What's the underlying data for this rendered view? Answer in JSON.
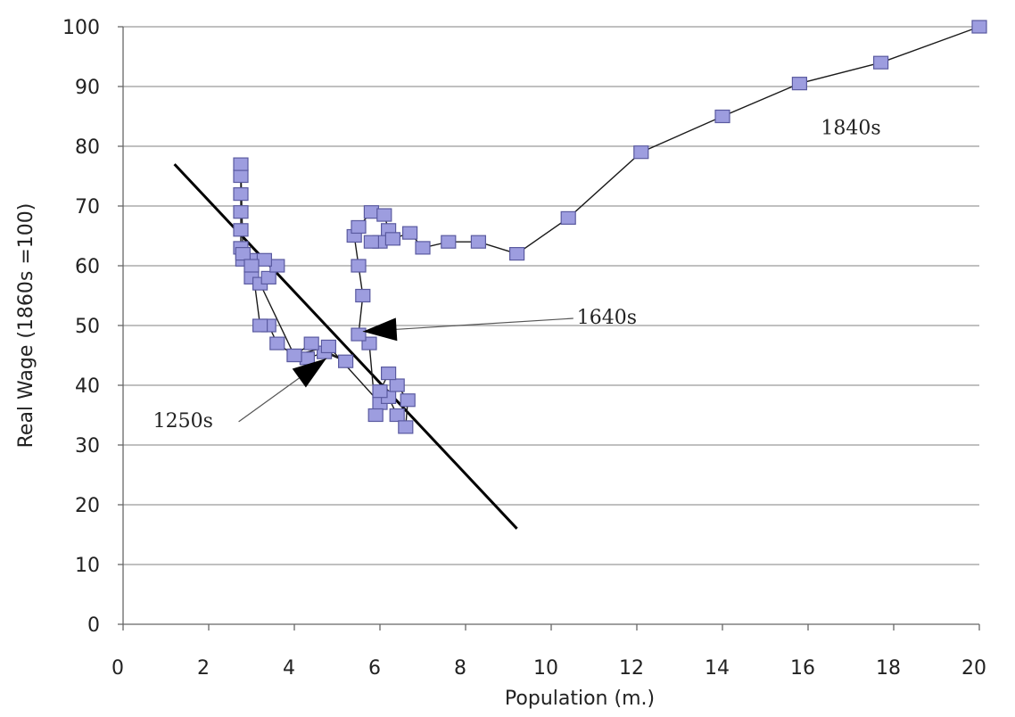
{
  "chart_data": {
    "type": "scatter",
    "title": "",
    "xlabel": "Population (m.)",
    "ylabel": "Real Wage (1860s =100)",
    "xlim": [
      0,
      20
    ],
    "ylim": [
      0,
      100
    ],
    "xticks": [
      0,
      2,
      4,
      6,
      8,
      10,
      12,
      14,
      16,
      18,
      20
    ],
    "yticks": [
      0,
      10,
      20,
      30,
      40,
      50,
      60,
      70,
      80,
      90,
      100
    ],
    "grid": "horizontal",
    "marker": "square",
    "marker_color": "#9d9ddf",
    "line_color": "#1a1a1a",
    "series": [
      {
        "points": [
          [
            4.3,
            44.5
          ],
          [
            4.7,
            45.5
          ],
          [
            5.2,
            44.0
          ],
          [
            4.4,
            47.0
          ],
          [
            4.0,
            45.0
          ],
          [
            3.6,
            47.0
          ],
          [
            3.4,
            50.0
          ],
          [
            3.2,
            50.0
          ],
          [
            3.0,
            61.0
          ],
          [
            2.8,
            61.0
          ],
          [
            2.75,
            63.0
          ],
          [
            2.75,
            66.0
          ],
          [
            2.75,
            69.0
          ],
          [
            2.75,
            72.0
          ],
          [
            2.75,
            75.0
          ],
          [
            2.75,
            77.0
          ],
          [
            2.8,
            62.0
          ],
          [
            3.0,
            58.0
          ],
          [
            3.2,
            57.0
          ],
          [
            3.4,
            58.0
          ],
          [
            3.6,
            60.0
          ],
          [
            3.3,
            61.0
          ],
          [
            3.0,
            60.0
          ],
          [
            4.0,
            45.0
          ],
          [
            4.8,
            46.5
          ],
          [
            6.0,
            37.0
          ],
          [
            6.2,
            38.0
          ],
          [
            6.4,
            35.0
          ],
          [
            6.6,
            33.0
          ],
          [
            6.65,
            37.5
          ],
          [
            6.4,
            40.0
          ],
          [
            6.2,
            42.0
          ],
          [
            6.0,
            39.0
          ],
          [
            5.9,
            35.0
          ],
          [
            5.75,
            47.0
          ],
          [
            5.5,
            48.5
          ],
          [
            5.6,
            55.0
          ],
          [
            5.5,
            60.0
          ],
          [
            5.4,
            65.0
          ],
          [
            5.5,
            66.5
          ],
          [
            5.8,
            69.0
          ],
          [
            6.1,
            68.5
          ],
          [
            6.2,
            66.0
          ],
          [
            6.0,
            64.0
          ],
          [
            5.8,
            64.0
          ],
          [
            6.3,
            64.5
          ],
          [
            6.7,
            65.5
          ],
          [
            7.0,
            63.0
          ],
          [
            7.6,
            64.0
          ],
          [
            8.3,
            64.0
          ],
          [
            9.2,
            62.0
          ],
          [
            10.4,
            68.0
          ],
          [
            12.1,
            79.0
          ],
          [
            14.0,
            85.0
          ],
          [
            15.8,
            90.5
          ],
          [
            17.7,
            94.0
          ],
          [
            20.0,
            100.0
          ]
        ]
      }
    ],
    "trendline": {
      "from": [
        1.2,
        77.0
      ],
      "to": [
        9.2,
        16.0
      ]
    },
    "annotations": [
      {
        "text": "1840s",
        "x": 16.3,
        "y": 82.0,
        "target": [
          15.8,
          90.5
        ]
      },
      {
        "text": "1640s",
        "x": 10.6,
        "y": 50.3,
        "target": [
          5.6,
          49.0
        ]
      },
      {
        "text": "1250s",
        "x": 0.7,
        "y": 33.0,
        "target": [
          4.75,
          44.5
        ]
      }
    ]
  }
}
